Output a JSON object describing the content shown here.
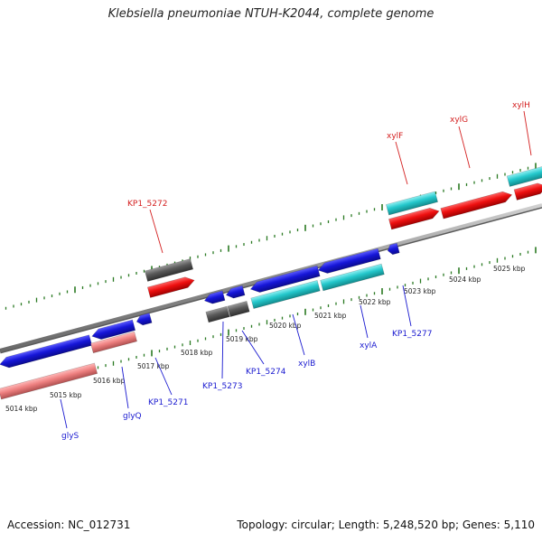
{
  "title": "Klebsiella pneumoniae NTUH-K2044, complete genome",
  "footer": {
    "accession": "Accession: NC_012731",
    "stats": "Topology: circular; Length: 5,248,520 bp; Genes: 5,110"
  },
  "colors": {
    "backbone": "#909090",
    "tick": "#2a7a22",
    "label_red": "#d42020",
    "label_blue": "#1a1ad0",
    "blue": "#1616d8",
    "red": "#ee1010",
    "cyan": "#24c8cc",
    "gray": "#5a5a5a",
    "pink": "#ee8080"
  },
  "axis_labels": [
    "5014 kbp",
    "5015 kbp",
    "5016 kbp",
    "5017 kbp",
    "5018 kbp",
    "5019 kbp",
    "5020 kbp",
    "5021 kbp",
    "5022 kbp",
    "5023 kbp",
    "5024 kbp",
    "5025 kbp"
  ],
  "genes": [
    {
      "name": "glyS",
      "color": "pink",
      "label_color": "blue"
    },
    {
      "name": "glyQ",
      "color": "blue",
      "label_color": "blue"
    },
    {
      "name": "KP1_5271",
      "color": "blue",
      "label_color": "blue"
    },
    {
      "name": "KP1_5272",
      "color": "gray",
      "label_color": "red"
    },
    {
      "name": "KP1_5273",
      "color": "gray",
      "label_color": "blue"
    },
    {
      "name": "KP1_5274",
      "color": "blue",
      "label_color": "blue"
    },
    {
      "name": "xylB",
      "color": "cyan",
      "label_color": "blue"
    },
    {
      "name": "xylA",
      "color": "cyan",
      "label_color": "blue"
    },
    {
      "name": "KP1_5277",
      "color": "blue",
      "label_color": "blue"
    },
    {
      "name": "xylF",
      "color": "cyan",
      "label_color": "red"
    },
    {
      "name": "xylG",
      "color": "red",
      "label_color": "red"
    },
    {
      "name": "xylH",
      "color": "cyan",
      "label_color": "red"
    }
  ]
}
